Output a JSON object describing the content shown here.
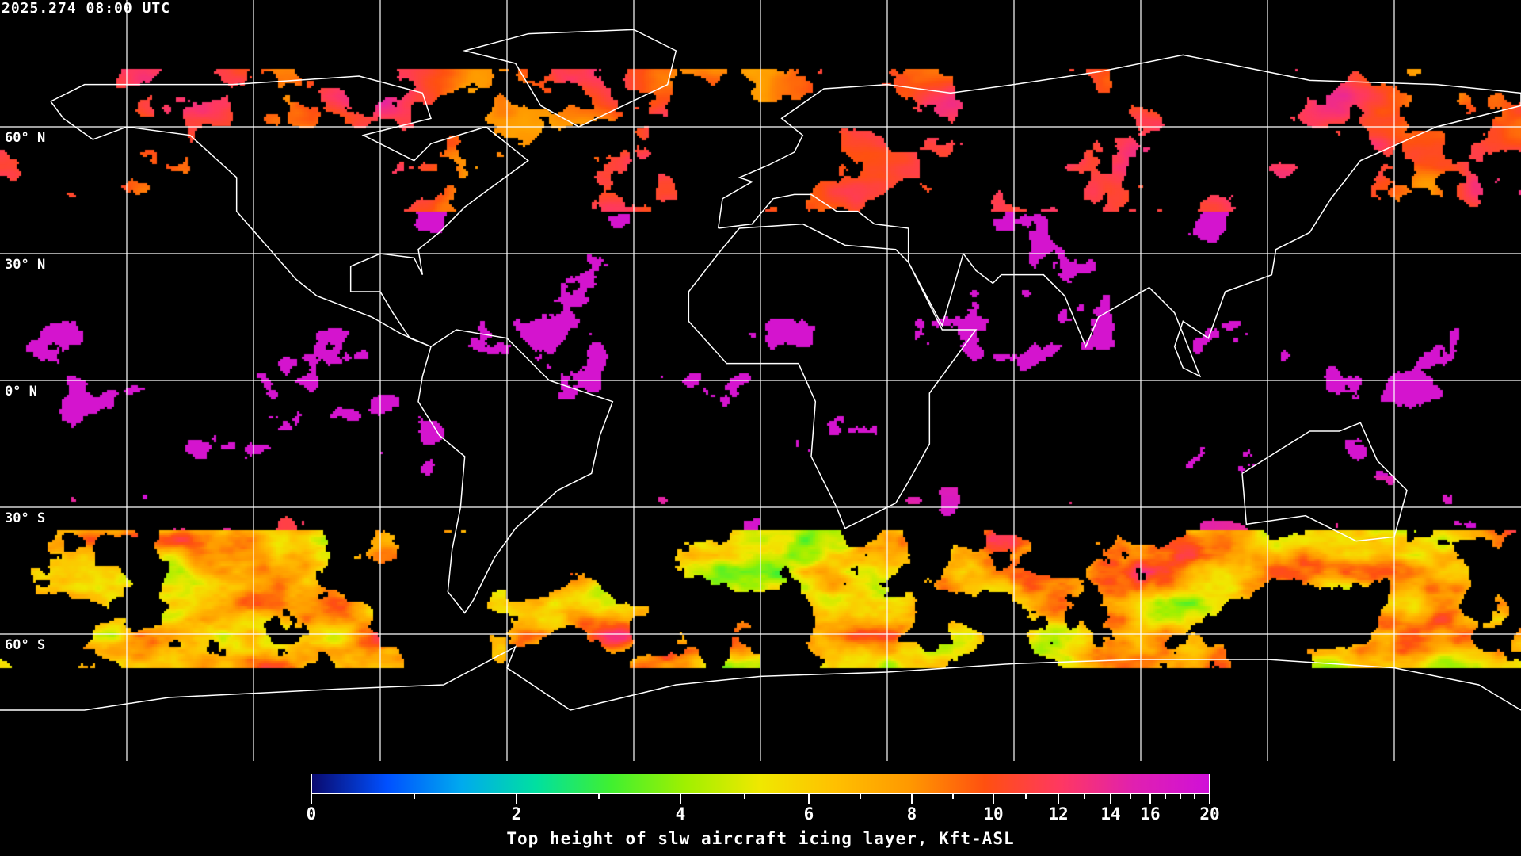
{
  "timestamp": "2025.274 08:00 UTC",
  "map": {
    "projection": "equirectangular",
    "lon_range": [
      -180,
      180
    ],
    "lat_range": [
      -90,
      90
    ],
    "grid_spacing_deg": 30,
    "grid_color": "#ffffff",
    "coastline_color": "#ffffff",
    "background": "#000000",
    "lat_labels": [
      "60° N",
      "30° N",
      "0° N",
      "30° S",
      "60° S"
    ]
  },
  "colorbar": {
    "title": "Top height of slw aircraft icing layer, Kft-ASL",
    "min": 0,
    "max": 20,
    "tick_labels": [
      "0",
      "2",
      "4",
      "6",
      "8",
      "10",
      "12",
      "14",
      "16",
      "20"
    ],
    "minor_ticks": [
      1,
      3,
      5,
      7,
      9,
      11,
      13,
      15,
      17,
      18,
      19
    ],
    "colors": [
      "#0a0a6e",
      "#0050ff",
      "#00aaee",
      "#00e0a0",
      "#40f030",
      "#a0f000",
      "#f0e800",
      "#ffc000",
      "#ff9800",
      "#ff5010",
      "#ff3860",
      "#e020b0",
      "#d010d8"
    ]
  }
}
